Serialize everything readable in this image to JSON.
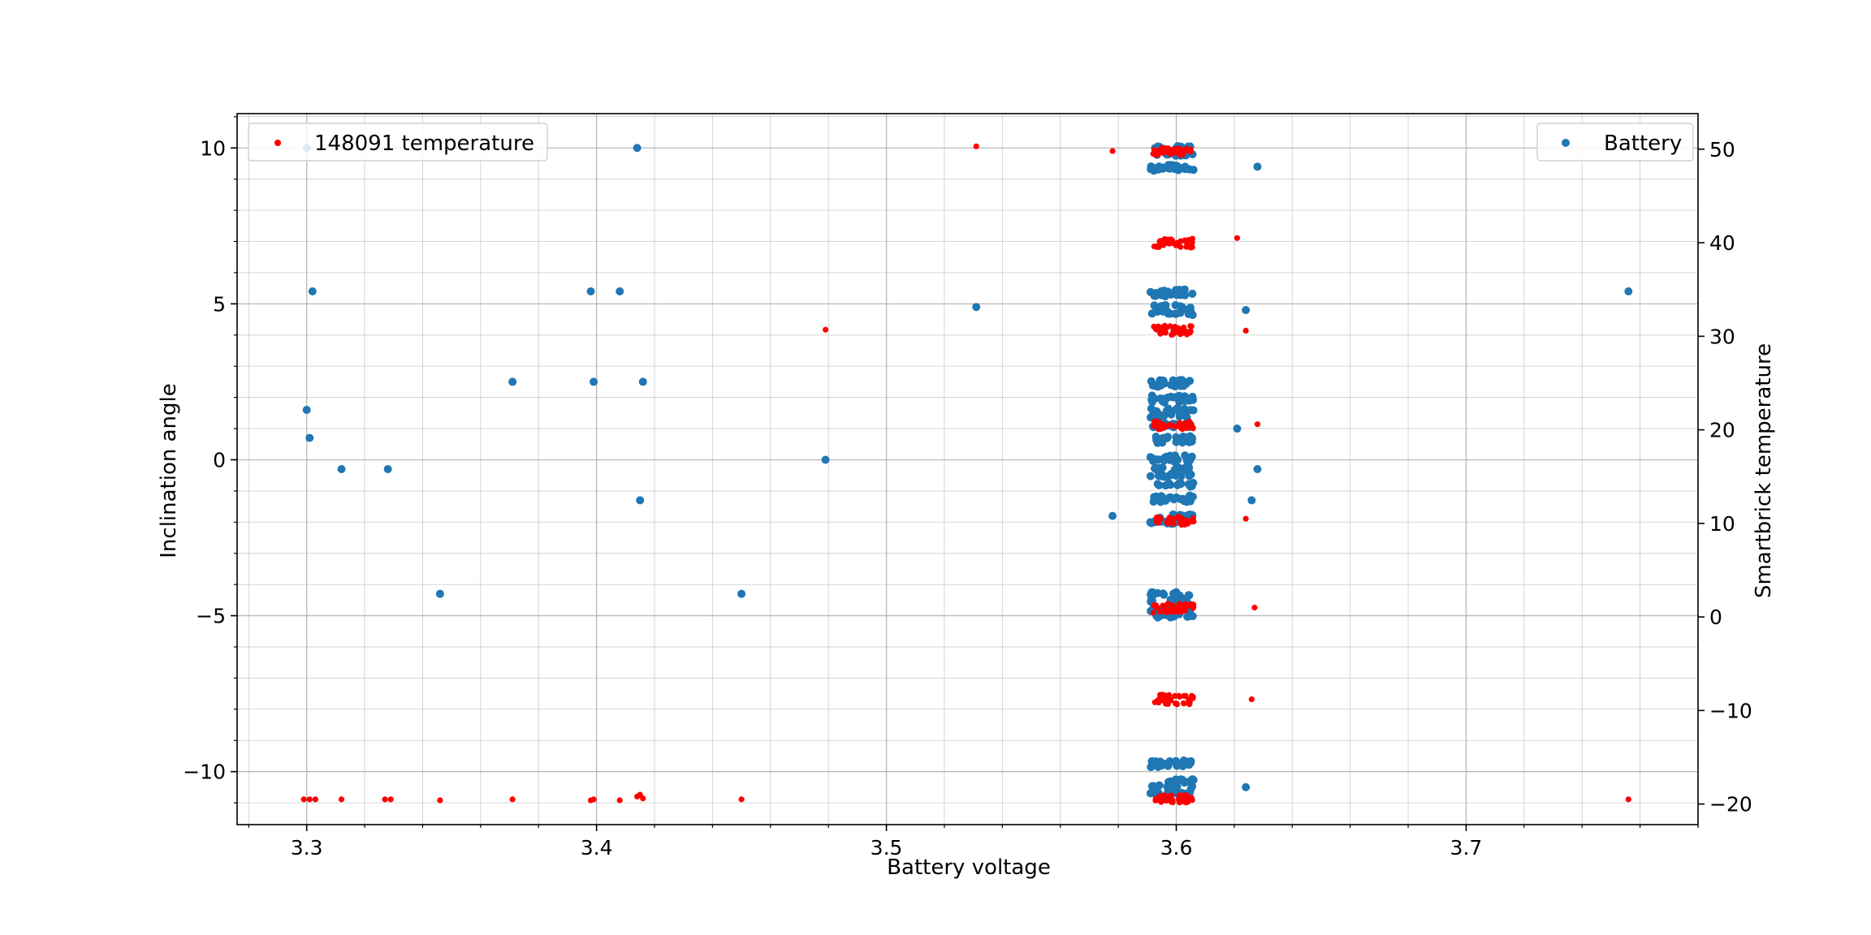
{
  "chart_data": {
    "type": "scatter",
    "title": "",
    "xlabel": "Battery voltage",
    "ylabel_left": "Inclination angle",
    "ylabel_right": "Smartbrick temperature",
    "xlim": [
      3.276,
      3.78
    ],
    "ylim_left": [
      -11.7,
      11.1
    ],
    "ylim_right": [
      -22.2,
      53.8
    ],
    "x_ticks": [
      3.3,
      3.4,
      3.5,
      3.6,
      3.7
    ],
    "x_tick_labels": [
      "3.3",
      "3.4",
      "3.5",
      "3.6",
      "3.7"
    ],
    "y_left_ticks": [
      -10,
      -5,
      0,
      5,
      10
    ],
    "y_left_tick_labels": [
      "−10",
      "−5",
      "0",
      "5",
      "10"
    ],
    "y_right_ticks": [
      -20,
      -10,
      0,
      10,
      20,
      30,
      40,
      50
    ],
    "y_right_tick_labels": [
      "−20",
      "−10",
      "0",
      "10",
      "20",
      "30",
      "40",
      "50"
    ],
    "grid": true,
    "colors": {
      "battery": "#1f77b4",
      "temperature": "#ff0000",
      "grid": "#b0b0b0"
    },
    "series": [
      {
        "name": "Battery",
        "axis": "left",
        "legend_position": "top-right",
        "x": [
          3.3,
          3.3,
          3.302,
          3.301,
          3.312,
          3.328,
          3.346,
          3.371,
          3.398,
          3.399,
          3.408,
          3.414,
          3.415,
          3.416,
          3.45,
          3.479,
          3.531,
          3.578,
          3.621,
          3.624,
          3.624,
          3.626,
          3.628,
          3.628,
          3.756
        ],
        "y": [
          10.0,
          1.6,
          5.4,
          0.7,
          -0.3,
          -0.3,
          -4.3,
          2.5,
          5.4,
          2.5,
          5.4,
          10.0,
          -1.3,
          2.5,
          -4.3,
          0.0,
          4.9,
          -1.8,
          1.0,
          4.8,
          -10.5,
          -1.3,
          9.4,
          -0.3,
          5.4
        ],
        "cluster": {
          "x_range": [
            3.591,
            3.606
          ],
          "y_levels": [
            10.0,
            9.8,
            9.4,
            9.3,
            5.4,
            5.3,
            4.9,
            4.7,
            2.5,
            2.4,
            2.0,
            1.9,
            1.6,
            1.4,
            1.1,
            0.7,
            0.6,
            0.1,
            0.0,
            -0.3,
            -0.5,
            -0.8,
            -1.2,
            -1.3,
            -1.8,
            -2.0,
            -4.3,
            -4.5,
            -4.8,
            -5.0,
            -9.7,
            -9.8,
            -10.3,
            -10.5,
            -10.7
          ]
        }
      },
      {
        "name": "148091 temperature",
        "axis": "right",
        "legend_position": "top-left",
        "x": [
          3.299,
          3.301,
          3.303,
          3.312,
          3.327,
          3.329,
          3.346,
          3.371,
          3.398,
          3.399,
          3.408,
          3.414,
          3.415,
          3.416,
          3.45,
          3.479,
          3.531,
          3.578,
          3.621,
          3.624,
          3.624,
          3.626,
          3.627,
          3.756
        ],
        "y": [
          -19.5,
          -19.5,
          -19.5,
          -19.5,
          -19.5,
          -19.5,
          -19.6,
          -19.5,
          -19.6,
          -19.5,
          -19.6,
          -19.2,
          -19.0,
          -19.4,
          -19.5,
          30.7,
          50.3,
          49.8,
          40.5,
          30.6,
          10.5,
          -8.8,
          1.0,
          -19.5
        ],
        "extra_points": {
          "x": [
            3.628
          ],
          "y": [
            20.6
          ]
        },
        "cluster": {
          "x_range": [
            3.592,
            3.606
          ],
          "y_levels": [
            50.0,
            49.8,
            49.5,
            40.3,
            40.0,
            39.6,
            31.0,
            30.6,
            30.3,
            20.8,
            20.5,
            20.2,
            10.6,
            10.3,
            10.0,
            1.3,
            1.0,
            0.6,
            -8.4,
            -8.8,
            -9.2,
            -19.2,
            -19.5,
            -19.7
          ]
        }
      }
    ]
  }
}
